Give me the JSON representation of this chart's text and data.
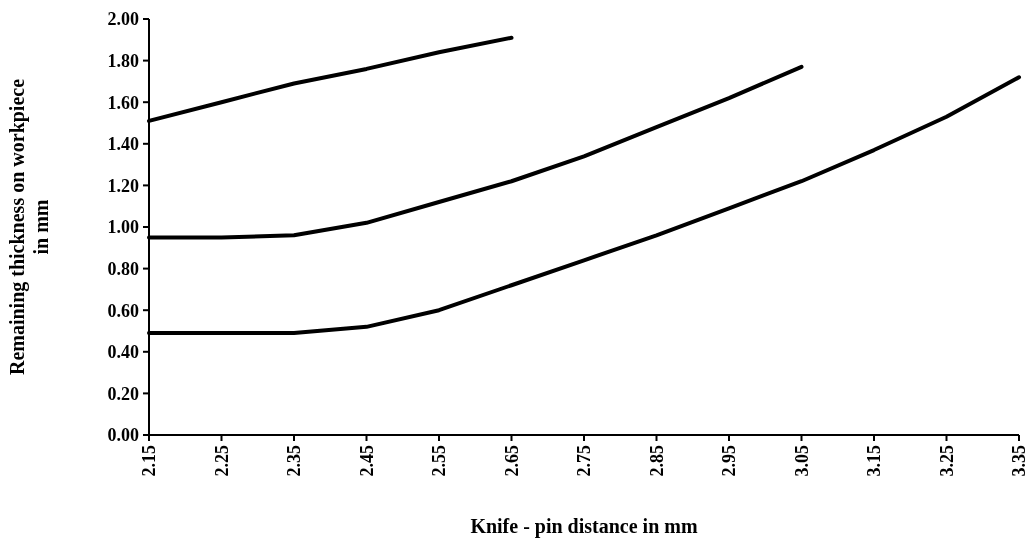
{
  "chart_data": {
    "type": "line",
    "xlabel": "Knife - pin distance in mm",
    "ylabel": "Remaining thickness on workpiece\nin mm",
    "xlim": [
      2.15,
      3.35
    ],
    "xticks": [
      {
        "value": 2.15,
        "label": "2.15"
      },
      {
        "value": 2.25,
        "label": "2.25"
      },
      {
        "value": 2.35,
        "label": "2.35"
      },
      {
        "value": 2.45,
        "label": "2.45"
      },
      {
        "value": 2.55,
        "label": "2.55"
      },
      {
        "value": 2.65,
        "label": "2.65"
      },
      {
        "value": 2.75,
        "label": "2.75"
      },
      {
        "value": 2.85,
        "label": "2.85"
      },
      {
        "value": 2.95,
        "label": "2.95"
      },
      {
        "value": 3.05,
        "label": "3.05"
      },
      {
        "value": 3.15,
        "label": "3.15"
      },
      {
        "value": 3.25,
        "label": "3.25"
      },
      {
        "value": 3.35,
        "label": "3.35"
      }
    ],
    "ylim": [
      0,
      2
    ],
    "yticks": [
      {
        "value": 0,
        "label": "0.00"
      },
      {
        "value": 0.2,
        "label": "0.20"
      },
      {
        "value": 0.4,
        "label": "0.40"
      },
      {
        "value": 0.6,
        "label": "0.60"
      },
      {
        "value": 0.8,
        "label": "0.80"
      },
      {
        "value": 1,
        "label": "1.00"
      },
      {
        "value": 1.2,
        "label": "1.20"
      },
      {
        "value": 1.4,
        "label": "1.40"
      },
      {
        "value": 1.6,
        "label": "1.60"
      },
      {
        "value": 1.8,
        "label": "1.80"
      },
      {
        "value": 2,
        "label": "2.00"
      }
    ],
    "series": [
      {
        "color": "#000000",
        "x": [
          2.15,
          2.25,
          2.35,
          2.45,
          2.55,
          2.65
        ],
        "values": [
          1.51,
          1.6,
          1.69,
          1.76,
          1.84,
          1.91
        ]
      },
      {
        "color": "#000000",
        "x": [
          2.15,
          2.25,
          2.35,
          2.45,
          2.55,
          2.65,
          2.75,
          2.85,
          2.95,
          3.05
        ],
        "values": [
          0.95,
          0.95,
          0.96,
          1.02,
          1.12,
          1.22,
          1.34,
          1.48,
          1.62,
          1.77
        ]
      },
      {
        "color": "#000000",
        "x": [
          2.15,
          2.25,
          2.35,
          2.45,
          2.55,
          2.65,
          2.75,
          2.85,
          2.95,
          3.05,
          3.15,
          3.25,
          3.35
        ],
        "values": [
          0.49,
          0.49,
          0.49,
          0.52,
          0.6,
          0.72,
          0.84,
          0.96,
          1.09,
          1.22,
          1.37,
          1.53,
          1.72
        ]
      }
    ]
  }
}
